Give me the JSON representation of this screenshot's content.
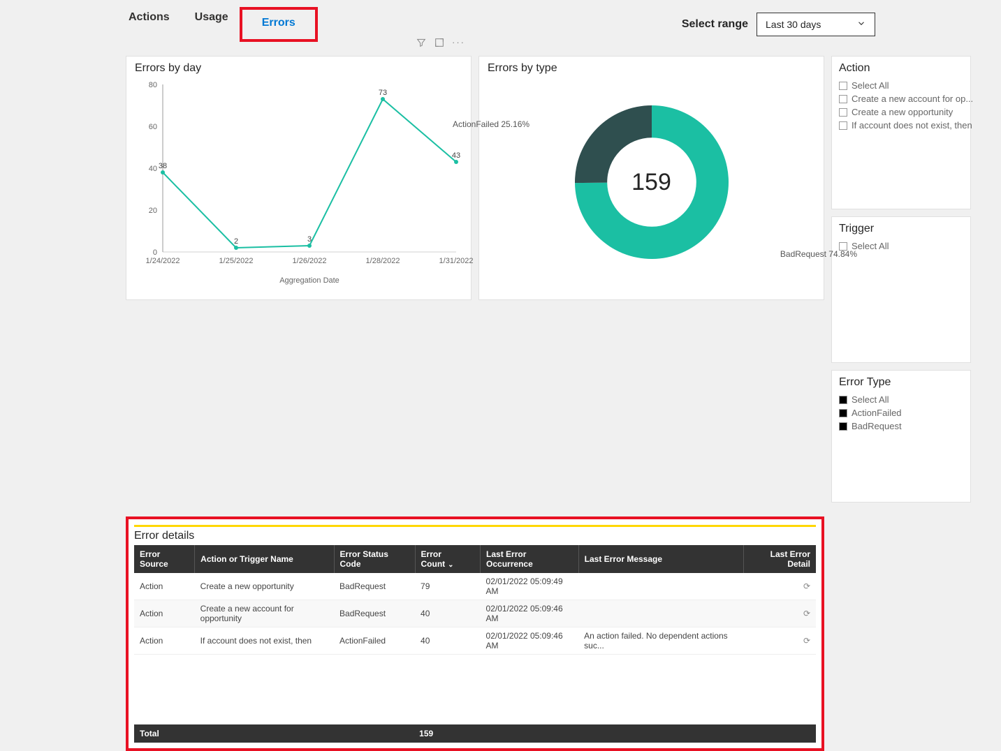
{
  "tabs": {
    "actions": "Actions",
    "usage": "Usage",
    "errors": "Errors"
  },
  "range": {
    "label": "Select range",
    "value": "Last 30 days"
  },
  "lineChart": {
    "title": "Errors by day",
    "xlabel": "Aggregation Date",
    "ylim": [
      0,
      80
    ],
    "ytick_step": 20,
    "categories": [
      "1/24/2022",
      "1/25/2022",
      "1/26/2022",
      "1/28/2022",
      "1/31/2022"
    ],
    "values": [
      38,
      2,
      3,
      73,
      43
    ],
    "line_color": "#1bbfa3",
    "grid_color": "#d0d0d0",
    "text_color": "#666666"
  },
  "donut": {
    "title": "Errors by type",
    "total": "159",
    "slices": [
      {
        "label": "BadRequest 74.84%",
        "pct": 74.84,
        "color": "#1bbfa3"
      },
      {
        "label": "ActionFailed 25.16%",
        "pct": 25.16,
        "color": "#2f4f4f"
      }
    ],
    "inner_radius_pct": 58
  },
  "filters": {
    "action": {
      "title": "Action",
      "items": [
        "Select All",
        "Create a new account for op...",
        "Create a new opportunity",
        "If account does not exist, then"
      ]
    },
    "trigger": {
      "title": "Trigger",
      "items": [
        "Select All"
      ]
    },
    "errorType": {
      "title": "Error Type",
      "items": [
        "Select All",
        "ActionFailed",
        "BadRequest"
      ],
      "filled": true
    }
  },
  "details": {
    "title": "Error details",
    "columns": [
      "Error Source",
      "Action or Trigger Name",
      "Error Status Code",
      "Error Count",
      "Last Error Occurrence",
      "Last Error Message",
      "Last Error Detail"
    ],
    "rows": [
      [
        "Action",
        "Create a new opportunity",
        "BadRequest",
        "79",
        "02/01/2022 05:09:49 AM",
        "",
        "↻"
      ],
      [
        "Action",
        "Create a new account for opportunity",
        "BadRequest",
        "40",
        "02/01/2022 05:09:46 AM",
        "",
        "↻"
      ],
      [
        "Action",
        "If account does not exist, then",
        "ActionFailed",
        "40",
        "02/01/2022 05:09:46 AM",
        "An action failed. No dependent actions suc...",
        "↻"
      ]
    ],
    "total_label": "Total",
    "total_value": "159"
  }
}
